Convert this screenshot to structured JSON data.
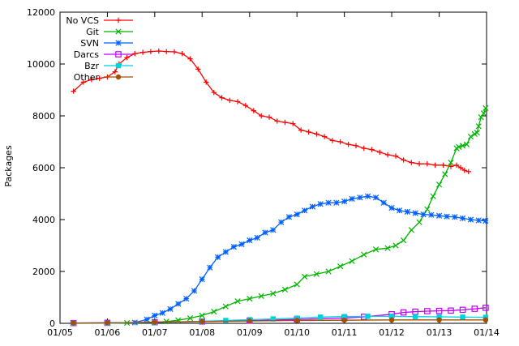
{
  "chart_data": {
    "type": "line",
    "ylabel": "Packages",
    "xlabel": "",
    "title": "",
    "xlim": [
      "2005-01-01",
      "2014-01-01"
    ],
    "ylim": [
      0,
      12000
    ],
    "y_ticks": [
      0,
      2000,
      4000,
      6000,
      8000,
      10000,
      12000
    ],
    "x_ticks": [
      {
        "date": "2005-01-01",
        "label": "01/05"
      },
      {
        "date": "2006-01-01",
        "label": "01/06"
      },
      {
        "date": "2007-01-01",
        "label": "01/07"
      },
      {
        "date": "2008-01-01",
        "label": "01/08"
      },
      {
        "date": "2009-01-01",
        "label": "01/09"
      },
      {
        "date": "2010-01-01",
        "label": "01/10"
      },
      {
        "date": "2011-01-01",
        "label": "01/11"
      },
      {
        "date": "2012-01-01",
        "label": "01/12"
      },
      {
        "date": "2013-01-01",
        "label": "01/13"
      },
      {
        "date": "2014-01-01",
        "label": "01/14"
      }
    ],
    "grid": false,
    "legend_position": "top-left",
    "series": [
      {
        "name": "No VCS",
        "color": "#ff0000",
        "marker": "plus",
        "points": [
          [
            "2005-04-15",
            8950
          ],
          [
            "2005-07-01",
            9300
          ],
          [
            "2005-09-01",
            9400
          ],
          [
            "2005-11-01",
            9450
          ],
          [
            "2006-01-01",
            9500
          ],
          [
            "2006-03-01",
            9700
          ],
          [
            "2006-04-01",
            10000
          ],
          [
            "2006-06-01",
            10250
          ],
          [
            "2006-08-01",
            10400
          ],
          [
            "2006-10-01",
            10450
          ],
          [
            "2006-12-01",
            10480
          ],
          [
            "2007-02-01",
            10500
          ],
          [
            "2007-04-01",
            10480
          ],
          [
            "2007-06-01",
            10470
          ],
          [
            "2007-08-01",
            10400
          ],
          [
            "2007-10-01",
            10200
          ],
          [
            "2007-12-01",
            9800
          ],
          [
            "2008-02-01",
            9300
          ],
          [
            "2008-04-01",
            8900
          ],
          [
            "2008-06-01",
            8700
          ],
          [
            "2008-08-01",
            8600
          ],
          [
            "2008-10-01",
            8550
          ],
          [
            "2008-12-01",
            8400
          ],
          [
            "2009-02-01",
            8200
          ],
          [
            "2009-04-01",
            8000
          ],
          [
            "2009-06-01",
            7950
          ],
          [
            "2009-08-01",
            7800
          ],
          [
            "2009-10-01",
            7750
          ],
          [
            "2009-12-01",
            7700
          ],
          [
            "2010-02-01",
            7450
          ],
          [
            "2010-04-01",
            7380
          ],
          [
            "2010-06-01",
            7300
          ],
          [
            "2010-08-01",
            7200
          ],
          [
            "2010-10-01",
            7050
          ],
          [
            "2010-12-01",
            7000
          ],
          [
            "2011-02-01",
            6900
          ],
          [
            "2011-04-01",
            6850
          ],
          [
            "2011-06-01",
            6750
          ],
          [
            "2011-08-01",
            6700
          ],
          [
            "2011-10-01",
            6600
          ],
          [
            "2011-12-01",
            6500
          ],
          [
            "2012-02-01",
            6450
          ],
          [
            "2012-04-01",
            6300
          ],
          [
            "2012-06-01",
            6200
          ],
          [
            "2012-08-01",
            6150
          ],
          [
            "2012-10-01",
            6150
          ],
          [
            "2012-12-01",
            6100
          ],
          [
            "2013-02-01",
            6100
          ],
          [
            "2013-04-01",
            6050
          ],
          [
            "2013-05-15",
            6100
          ],
          [
            "2013-06-15",
            6000
          ],
          [
            "2013-07-15",
            5900
          ],
          [
            "2013-08-15",
            5850
          ]
        ]
      },
      {
        "name": "Git",
        "color": "#00b400",
        "marker": "cross",
        "points": [
          [
            "2005-04-15",
            0
          ],
          [
            "2006-01-01",
            5
          ],
          [
            "2006-06-01",
            15
          ],
          [
            "2007-01-01",
            40
          ],
          [
            "2007-04-01",
            70
          ],
          [
            "2007-07-01",
            120
          ],
          [
            "2007-10-01",
            200
          ],
          [
            "2008-01-01",
            300
          ],
          [
            "2008-04-01",
            450
          ],
          [
            "2008-07-01",
            650
          ],
          [
            "2008-10-01",
            850
          ],
          [
            "2009-01-01",
            950
          ],
          [
            "2009-04-01",
            1050
          ],
          [
            "2009-07-01",
            1150
          ],
          [
            "2009-10-01",
            1300
          ],
          [
            "2010-01-01",
            1500
          ],
          [
            "2010-03-01",
            1800
          ],
          [
            "2010-06-01",
            1900
          ],
          [
            "2010-09-01",
            2000
          ],
          [
            "2010-12-01",
            2200
          ],
          [
            "2011-03-01",
            2400
          ],
          [
            "2011-06-01",
            2650
          ],
          [
            "2011-09-01",
            2850
          ],
          [
            "2011-12-01",
            2900
          ],
          [
            "2012-02-01",
            3000
          ],
          [
            "2012-04-01",
            3200
          ],
          [
            "2012-06-01",
            3600
          ],
          [
            "2012-08-01",
            3900
          ],
          [
            "2012-10-01",
            4400
          ],
          [
            "2012-11-15",
            4900
          ],
          [
            "2013-01-01",
            5350
          ],
          [
            "2013-02-15",
            5750
          ],
          [
            "2013-04-01",
            6200
          ],
          [
            "2013-05-15",
            6750
          ],
          [
            "2013-06-01",
            6800
          ],
          [
            "2013-07-01",
            6850
          ],
          [
            "2013-08-01",
            6900
          ],
          [
            "2013-09-01",
            7200
          ],
          [
            "2013-10-01",
            7300
          ],
          [
            "2013-10-20",
            7350
          ],
          [
            "2013-11-01",
            7600
          ],
          [
            "2013-11-20",
            7950
          ],
          [
            "2013-12-10",
            8100
          ],
          [
            "2013-12-25",
            8300
          ]
        ]
      },
      {
        "name": "SVN",
        "color": "#0060ff",
        "marker": "star",
        "points": [
          [
            "2005-04-15",
            5
          ],
          [
            "2006-01-01",
            10
          ],
          [
            "2006-08-01",
            30
          ],
          [
            "2006-11-01",
            150
          ],
          [
            "2007-01-01",
            300
          ],
          [
            "2007-03-01",
            400
          ],
          [
            "2007-05-01",
            550
          ],
          [
            "2007-07-01",
            750
          ],
          [
            "2007-09-01",
            950
          ],
          [
            "2007-11-01",
            1250
          ],
          [
            "2008-01-01",
            1700
          ],
          [
            "2008-03-01",
            2150
          ],
          [
            "2008-05-01",
            2550
          ],
          [
            "2008-07-01",
            2750
          ],
          [
            "2008-09-01",
            2950
          ],
          [
            "2008-11-01",
            3050
          ],
          [
            "2009-01-01",
            3200
          ],
          [
            "2009-03-01",
            3300
          ],
          [
            "2009-05-01",
            3500
          ],
          [
            "2009-07-01",
            3600
          ],
          [
            "2009-09-01",
            3900
          ],
          [
            "2009-11-01",
            4100
          ],
          [
            "2010-01-01",
            4200
          ],
          [
            "2010-03-01",
            4350
          ],
          [
            "2010-05-01",
            4500
          ],
          [
            "2010-07-01",
            4600
          ],
          [
            "2010-09-01",
            4650
          ],
          [
            "2010-11-01",
            4650
          ],
          [
            "2011-01-01",
            4700
          ],
          [
            "2011-03-01",
            4800
          ],
          [
            "2011-05-01",
            4850
          ],
          [
            "2011-07-01",
            4900
          ],
          [
            "2011-09-01",
            4850
          ],
          [
            "2011-11-01",
            4650
          ],
          [
            "2012-01-01",
            4450
          ],
          [
            "2012-03-01",
            4350
          ],
          [
            "2012-05-01",
            4300
          ],
          [
            "2012-07-01",
            4250
          ],
          [
            "2012-09-01",
            4200
          ],
          [
            "2012-11-01",
            4180
          ],
          [
            "2013-01-01",
            4150
          ],
          [
            "2013-03-01",
            4120
          ],
          [
            "2013-05-01",
            4100
          ],
          [
            "2013-07-01",
            4050
          ],
          [
            "2013-09-01",
            4000
          ],
          [
            "2013-11-01",
            3970
          ],
          [
            "2013-12-25",
            3950
          ]
        ]
      },
      {
        "name": "Darcs",
        "color": "#c000ff",
        "marker": "square",
        "points": [
          [
            "2005-04-15",
            10
          ],
          [
            "2006-01-01",
            20
          ],
          [
            "2007-01-01",
            40
          ],
          [
            "2008-01-01",
            70
          ],
          [
            "2009-01-01",
            100
          ],
          [
            "2010-01-01",
            150
          ],
          [
            "2011-01-01",
            200
          ],
          [
            "2011-06-01",
            250
          ],
          [
            "2012-01-01",
            350
          ],
          [
            "2012-04-01",
            420
          ],
          [
            "2012-07-01",
            450
          ],
          [
            "2012-10-01",
            470
          ],
          [
            "2013-01-01",
            480
          ],
          [
            "2013-04-01",
            490
          ],
          [
            "2013-07-01",
            520
          ],
          [
            "2013-10-01",
            560
          ],
          [
            "2013-12-25",
            600
          ]
        ]
      },
      {
        "name": "Bzr",
        "color": "#00d0e0",
        "marker": "filled-square",
        "points": [
          [
            "2005-04-15",
            5
          ],
          [
            "2006-01-01",
            10
          ],
          [
            "2007-01-01",
            30
          ],
          [
            "2008-01-01",
            80
          ],
          [
            "2008-07-01",
            110
          ],
          [
            "2009-01-01",
            140
          ],
          [
            "2009-07-01",
            170
          ],
          [
            "2010-01-01",
            200
          ],
          [
            "2010-07-01",
            240
          ],
          [
            "2011-01-01",
            260
          ],
          [
            "2011-07-01",
            270
          ],
          [
            "2012-01-01",
            270
          ],
          [
            "2012-07-01",
            260
          ],
          [
            "2013-01-01",
            250
          ],
          [
            "2013-07-01",
            240
          ],
          [
            "2013-12-25",
            230
          ]
        ]
      },
      {
        "name": "Other",
        "color": "#a05000",
        "marker": "filled-circle",
        "points": [
          [
            "2005-04-15",
            10
          ],
          [
            "2006-01-01",
            20
          ],
          [
            "2007-01-01",
            40
          ],
          [
            "2008-01-01",
            70
          ],
          [
            "2009-01-01",
            90
          ],
          [
            "2010-01-01",
            110
          ],
          [
            "2011-01-01",
            120
          ],
          [
            "2012-01-01",
            130
          ],
          [
            "2013-01-01",
            130
          ],
          [
            "2013-12-25",
            130
          ]
        ]
      }
    ]
  }
}
